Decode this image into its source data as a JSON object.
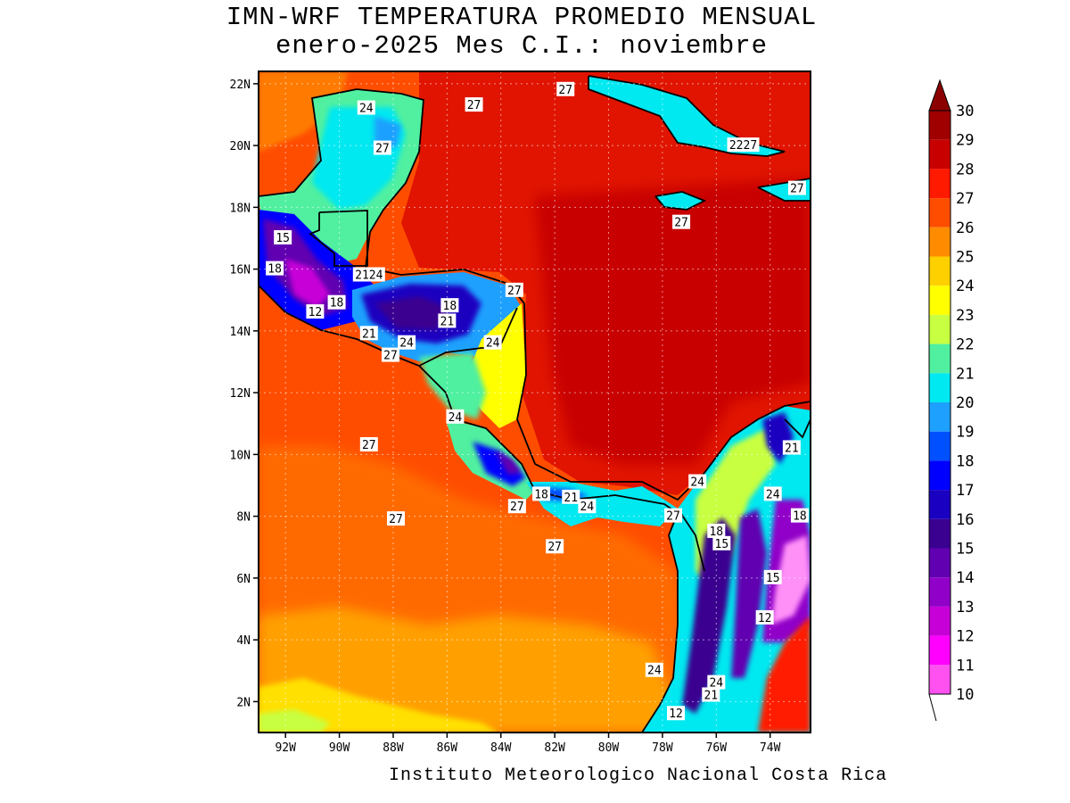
{
  "title": {
    "line1": "IMN-WRF  TEMPERATURA PROMEDIO MENSUAL",
    "line2": "enero-2025 Mes C.I.: noviembre"
  },
  "credit": "Instituto Meteorologico Nacional Costa Rica",
  "map": {
    "lon_range": [
      -93.0,
      -72.5
    ],
    "lat_range": [
      1.0,
      22.4
    ],
    "lon_ticks": [
      "92W",
      "90W",
      "88W",
      "86W",
      "84W",
      "82W",
      "80W",
      "78W",
      "76W",
      "74W"
    ],
    "lat_ticks": [
      "2N",
      "4N",
      "6N",
      "8N",
      "10N",
      "12N",
      "14N",
      "16N",
      "18N",
      "20N",
      "22N"
    ],
    "grid": true,
    "contour_labels": [
      {
        "text": "24",
        "lon": -89.0,
        "lat": 21.2
      },
      {
        "text": "27",
        "lon": -85.0,
        "lat": 21.3
      },
      {
        "text": "27",
        "lon": -81.6,
        "lat": 21.8
      },
      {
        "text": "27",
        "lon": -88.4,
        "lat": 19.9
      },
      {
        "text": "2227",
        "lon": -75.0,
        "lat": 20.0
      },
      {
        "text": "27",
        "lon": -73.0,
        "lat": 18.6
      },
      {
        "text": "27",
        "lon": -77.3,
        "lat": 17.5
      },
      {
        "text": "15",
        "lon": -92.1,
        "lat": 17.0
      },
      {
        "text": "18",
        "lon": -92.4,
        "lat": 16.0
      },
      {
        "text": "2124",
        "lon": -88.9,
        "lat": 15.8
      },
      {
        "text": "27",
        "lon": -83.5,
        "lat": 15.3
      },
      {
        "text": "18",
        "lon": -90.1,
        "lat": 14.9
      },
      {
        "text": "18",
        "lon": -85.9,
        "lat": 14.8
      },
      {
        "text": "12",
        "lon": -90.9,
        "lat": 14.6
      },
      {
        "text": "21",
        "lon": -86.0,
        "lat": 14.3
      },
      {
        "text": "21",
        "lon": -88.9,
        "lat": 13.9
      },
      {
        "text": "24",
        "lon": -87.5,
        "lat": 13.6
      },
      {
        "text": "24",
        "lon": -84.3,
        "lat": 13.6
      },
      {
        "text": "27",
        "lon": -88.1,
        "lat": 13.2
      },
      {
        "text": "24",
        "lon": -85.7,
        "lat": 11.2
      },
      {
        "text": "21",
        "lon": -73.2,
        "lat": 10.2
      },
      {
        "text": "27",
        "lon": -88.9,
        "lat": 10.3
      },
      {
        "text": "24",
        "lon": -76.7,
        "lat": 9.1
      },
      {
        "text": "18",
        "lon": -82.5,
        "lat": 8.7
      },
      {
        "text": "21",
        "lon": -81.4,
        "lat": 8.6
      },
      {
        "text": "24",
        "lon": -73.9,
        "lat": 8.7
      },
      {
        "text": "24",
        "lon": -80.8,
        "lat": 8.3
      },
      {
        "text": "27",
        "lon": -83.4,
        "lat": 8.3
      },
      {
        "text": "27",
        "lon": -77.6,
        "lat": 8.0
      },
      {
        "text": "18",
        "lon": -72.9,
        "lat": 8.0
      },
      {
        "text": "27",
        "lon": -87.9,
        "lat": 7.9
      },
      {
        "text": "18",
        "lon": -76.0,
        "lat": 7.5
      },
      {
        "text": "15",
        "lon": -75.8,
        "lat": 7.1
      },
      {
        "text": "27",
        "lon": -82.0,
        "lat": 7.0
      },
      {
        "text": "15",
        "lon": -73.9,
        "lat": 6.0
      },
      {
        "text": "12",
        "lon": -74.2,
        "lat": 4.7
      },
      {
        "text": "24",
        "lon": -78.3,
        "lat": 3.0
      },
      {
        "text": "24",
        "lon": -76.0,
        "lat": 2.6
      },
      {
        "text": "21",
        "lon": -76.2,
        "lat": 2.2
      },
      {
        "text": "12",
        "lon": -77.5,
        "lat": 1.6
      }
    ]
  },
  "colorbar": {
    "levels": [
      "30",
      "29",
      "28",
      "27",
      "26",
      "25",
      "24",
      "23",
      "22",
      "21",
      "20",
      "19",
      "18",
      "17",
      "16",
      "15",
      "14",
      "13",
      "12",
      "11",
      "10"
    ],
    "colors": [
      "#a00000",
      "#c80000",
      "#ff1a00",
      "#ff4d00",
      "#ff8c00",
      "#ffd000",
      "#ffff00",
      "#c8ff40",
      "#50f0a0",
      "#00e8f0",
      "#1ea0ff",
      "#0050ff",
      "#0000ff",
      "#1a00c0",
      "#3a0090",
      "#6000b0",
      "#9000c8",
      "#c800d8",
      "#ff00ff",
      "#ff50f0",
      "#ff90f8"
    ],
    "over_color": "#8b0000"
  }
}
